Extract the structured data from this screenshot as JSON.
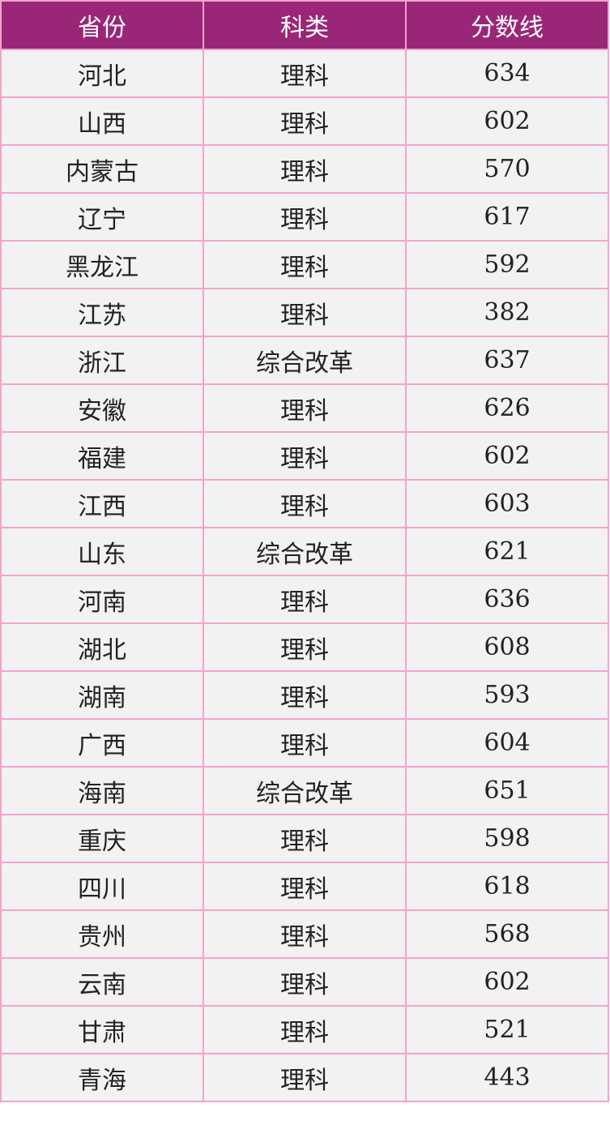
{
  "table": {
    "headers": [
      "省份",
      "科类",
      "分数线"
    ],
    "rows": [
      [
        "河北",
        "理科",
        "634"
      ],
      [
        "山西",
        "理科",
        "602"
      ],
      [
        "内蒙古",
        "理科",
        "570"
      ],
      [
        "辽宁",
        "理科",
        "617"
      ],
      [
        "黑龙江",
        "理科",
        "592"
      ],
      [
        "江苏",
        "理科",
        "382"
      ],
      [
        "浙江",
        "综合改革",
        "637"
      ],
      [
        "安徽",
        "理科",
        "626"
      ],
      [
        "福建",
        "理科",
        "602"
      ],
      [
        "江西",
        "理科",
        "603"
      ],
      [
        "山东",
        "综合改革",
        "621"
      ],
      [
        "河南",
        "理科",
        "636"
      ],
      [
        "湖北",
        "理科",
        "608"
      ],
      [
        "湖南",
        "理科",
        "593"
      ],
      [
        "广西",
        "理科",
        "604"
      ],
      [
        "海南",
        "综合改革",
        "651"
      ],
      [
        "重庆",
        "理科",
        "598"
      ],
      [
        "四川",
        "理科",
        "618"
      ],
      [
        "贵州",
        "理科",
        "568"
      ],
      [
        "云南",
        "理科",
        "602"
      ],
      [
        "甘肃",
        "理科",
        "521"
      ],
      [
        "青海",
        "理科",
        "443"
      ]
    ]
  },
  "colors": {
    "header_bg": "#9a2677",
    "border": "#f5a3cf",
    "cell_bg": "#f2f2f2"
  }
}
